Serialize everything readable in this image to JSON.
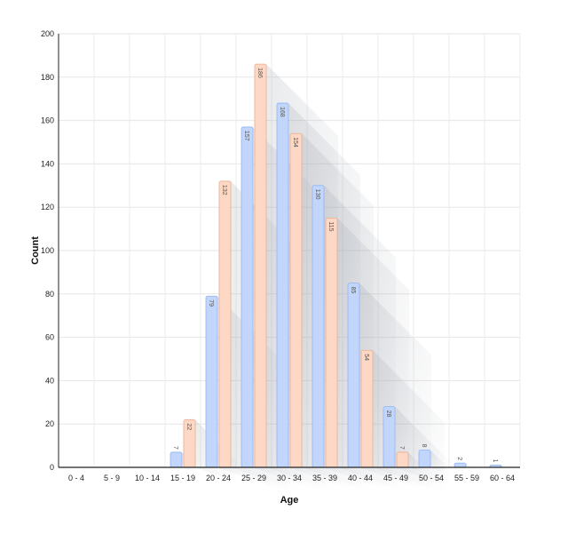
{
  "chart_data": {
    "type": "bar",
    "xlabel": "Age",
    "ylabel": "Count",
    "ylim": [
      0,
      200
    ],
    "yticks": [
      0,
      20,
      40,
      60,
      80,
      100,
      120,
      140,
      160,
      180,
      200
    ],
    "grid": true,
    "categories": [
      "0 - 4",
      "5 - 9",
      "10 - 14",
      "15 - 19",
      "20 - 24",
      "25 - 29",
      "30 - 34",
      "35 - 39",
      "40 - 44",
      "45 - 49",
      "50 - 54",
      "55 - 59",
      "60 - 64"
    ],
    "series": [
      {
        "values": [
          0,
          0,
          0,
          7,
          79,
          157,
          168,
          130,
          85,
          28,
          8,
          2,
          1
        ],
        "color": "#c2d6fb",
        "stroke": "#93b5f2"
      },
      {
        "values": [
          0,
          0,
          0,
          22,
          132,
          186,
          154,
          115,
          54,
          7,
          0,
          0,
          0
        ],
        "color": "#fdd8c4",
        "stroke": "#efaa8c"
      }
    ]
  }
}
